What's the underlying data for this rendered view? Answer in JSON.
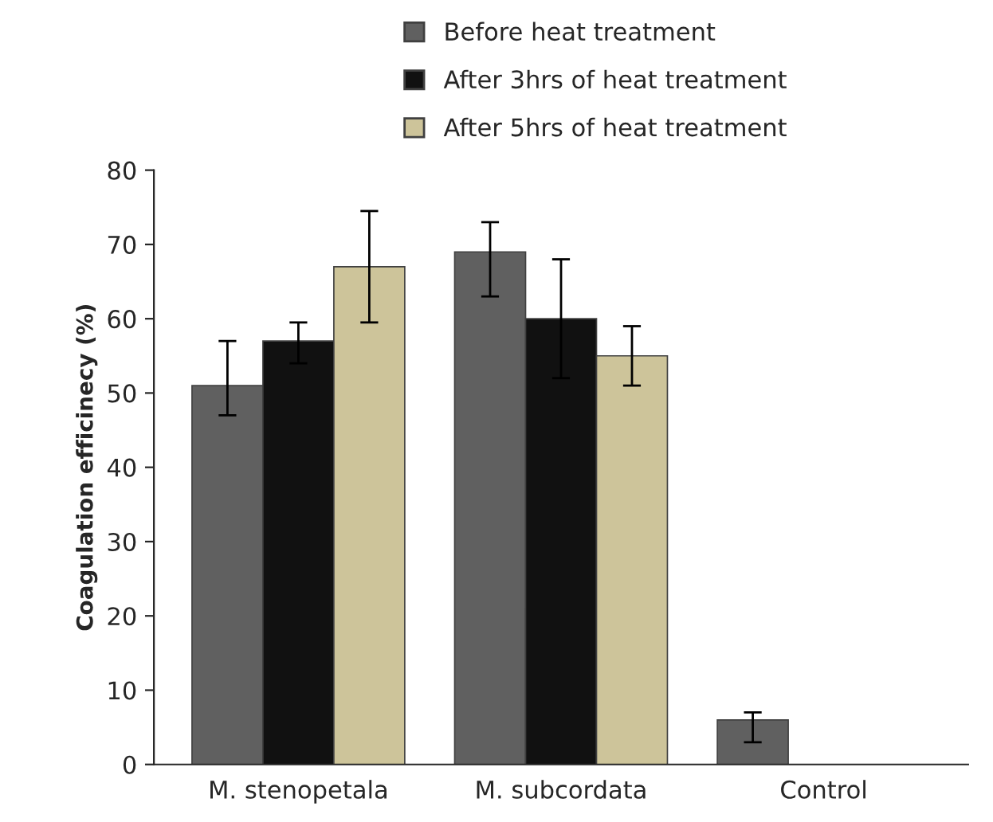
{
  "chart_data": {
    "type": "bar",
    "ylabel": "Coagulation efficinecy (%)",
    "categories": [
      "M. stenopetala",
      "M. subcordata",
      "Control"
    ],
    "series": [
      {
        "name": "Before heat treatment",
        "color": "#606060",
        "values": [
          51,
          69,
          6
        ],
        "errors": [
          [
            47,
            57
          ],
          [
            63,
            73
          ],
          [
            3,
            7
          ]
        ]
      },
      {
        "name": "After 3hrs of heat treatment",
        "color": "#111111",
        "values": [
          57,
          60,
          null
        ],
        "errors": [
          [
            54,
            59.5
          ],
          [
            52,
            68
          ],
          null
        ]
      },
      {
        "name": "After 5hrs of heat treatment",
        "color": "#cdc49a",
        "values": [
          67,
          55,
          null
        ],
        "errors": [
          [
            59.5,
            74.5
          ],
          [
            51,
            59
          ],
          null
        ]
      }
    ],
    "ylim": [
      0,
      80
    ],
    "yticks": [
      0,
      10,
      20,
      30,
      40,
      50,
      60,
      70,
      80
    ],
    "grid": false,
    "legend": "top"
  }
}
